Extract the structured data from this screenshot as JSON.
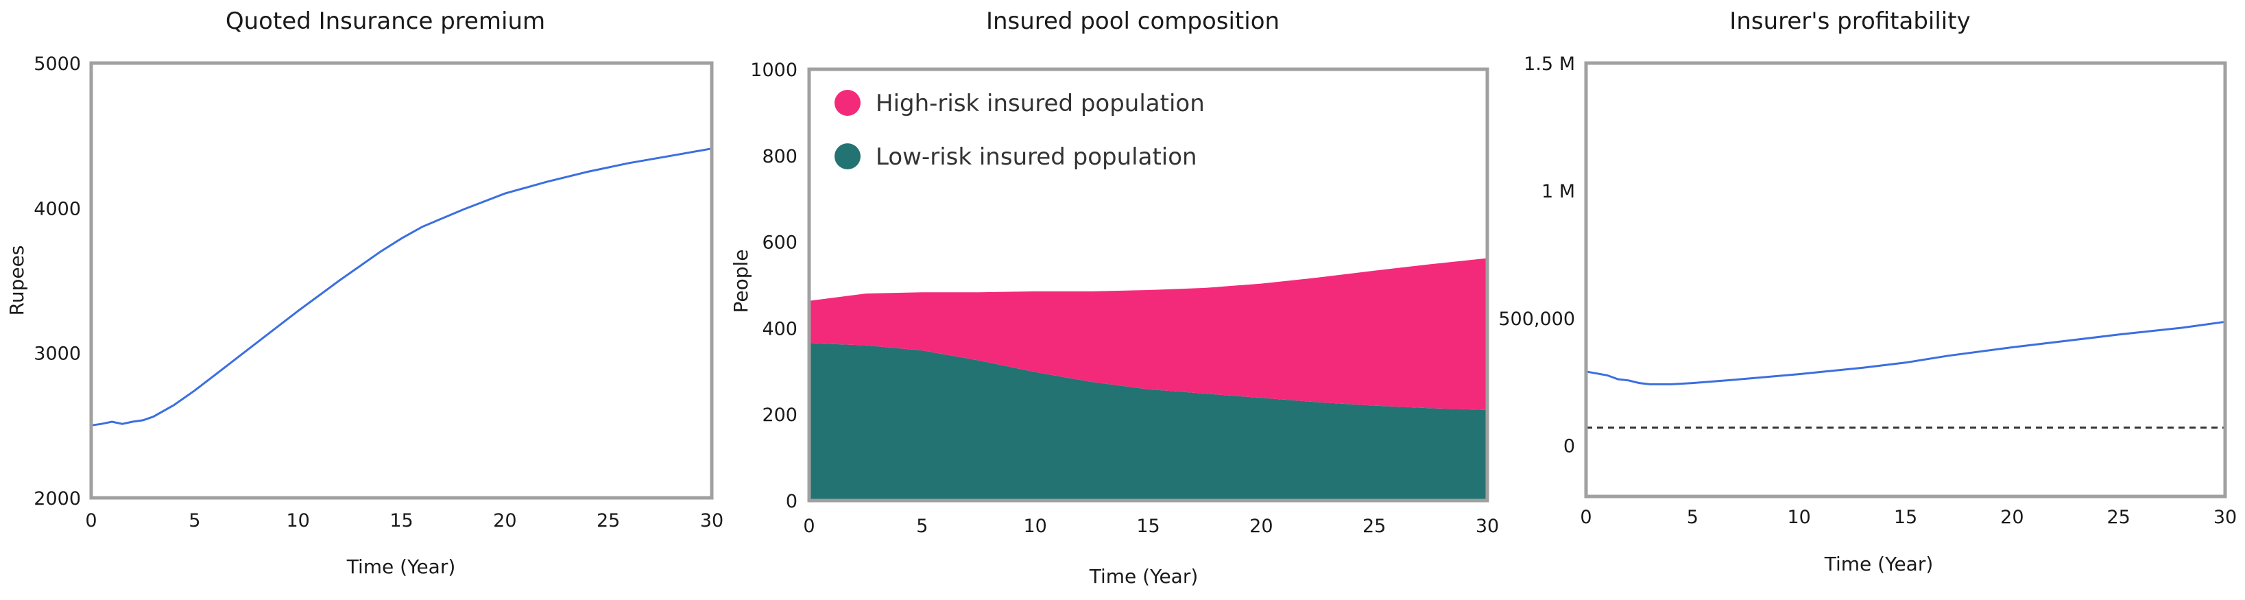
{
  "chart_data": [
    {
      "type": "line",
      "title": "Quoted Insurance premium",
      "xlabel": "Time (Year)",
      "ylabel": "Rupees",
      "xlim": [
        0,
        30
      ],
      "ylim": [
        2000,
        5000
      ],
      "xticks": [
        0,
        5,
        10,
        15,
        20,
        25,
        30
      ],
      "xtick_labels": [
        "0",
        "5",
        "10",
        "15",
        "20",
        "25",
        "30"
      ],
      "yticks": [
        2000,
        3000,
        4000,
        5000
      ],
      "ytick_labels": [
        "2000",
        "3000",
        "4000",
        "5000"
      ],
      "grid": false,
      "line_color": "#3b6fe0",
      "series": [
        {
          "x": [
            0,
            0.5,
            1,
            1.5,
            2,
            2.5,
            3,
            4,
            5,
            6,
            8,
            10,
            12,
            14,
            15,
            16,
            18,
            20,
            22,
            24,
            26,
            28,
            30
          ],
          "values": [
            2500,
            2510,
            2525,
            2510,
            2525,
            2535,
            2560,
            2640,
            2740,
            2850,
            3070,
            3290,
            3500,
            3700,
            3790,
            3870,
            3990,
            4100,
            4180,
            4250,
            4310,
            4360,
            4410
          ]
        }
      ]
    },
    {
      "type": "area",
      "stacked": true,
      "title": "Insured pool composition",
      "xlabel": "Time (Year)",
      "ylabel": "People",
      "xlim": [
        0,
        30
      ],
      "ylim": [
        0,
        1000
      ],
      "xticks": [
        0,
        5,
        10,
        15,
        20,
        25,
        30
      ],
      "xtick_labels": [
        "0",
        "5",
        "10",
        "15",
        "20",
        "25",
        "30"
      ],
      "yticks": [
        0,
        200,
        400,
        600,
        800,
        1000
      ],
      "ytick_labels": [
        "0",
        "200",
        "400",
        "600",
        "800",
        "1000"
      ],
      "grid": false,
      "legend_position": "top-left",
      "x": [
        0,
        2.5,
        5,
        7.5,
        10,
        12.5,
        15,
        17.5,
        20,
        22.5,
        25,
        27.5,
        30
      ],
      "series": [
        {
          "name": "Low-risk insured population",
          "color": "#237373",
          "values": [
            365,
            360,
            348,
            325,
            298,
            275,
            258,
            248,
            238,
            228,
            220,
            214,
            210
          ]
        },
        {
          "name": "High-risk insured population",
          "color": "#f32a7a",
          "values": [
            98,
            120,
            135,
            158,
            187,
            210,
            230,
            245,
            265,
            289,
            313,
            334,
            352
          ]
        }
      ],
      "legend_order": [
        "High-risk insured population",
        "Low-risk insured population"
      ]
    },
    {
      "type": "line",
      "title": "Insurer's profitability",
      "xlabel": "Time (Year)",
      "ylabel": "",
      "xlim": [
        0,
        30
      ],
      "ylim": [
        -200000,
        1500000
      ],
      "xticks": [
        0,
        5,
        10,
        15,
        20,
        25,
        30
      ],
      "xtick_labels": [
        "0",
        "5",
        "10",
        "15",
        "20",
        "25",
        "30"
      ],
      "yticks": [
        0,
        500000,
        1000000,
        1500000
      ],
      "ytick_labels": [
        "0",
        "500,000",
        "1 M",
        "1.5 M"
      ],
      "grid": false,
      "line_color": "#3b6fe0",
      "reference_line": {
        "y": 70000,
        "style": "dashed",
        "color": "#333333"
      },
      "series": [
        {
          "x": [
            0,
            1,
            1.5,
            2,
            2.5,
            3,
            3.5,
            4,
            5,
            7,
            10,
            13,
            15,
            17,
            20,
            23,
            25,
            28,
            30
          ],
          "values": [
            290000,
            275000,
            260000,
            255000,
            245000,
            240000,
            240000,
            240000,
            245000,
            258000,
            280000,
            305000,
            325000,
            352000,
            385000,
            415000,
            435000,
            462000,
            485000
          ]
        }
      ]
    }
  ]
}
